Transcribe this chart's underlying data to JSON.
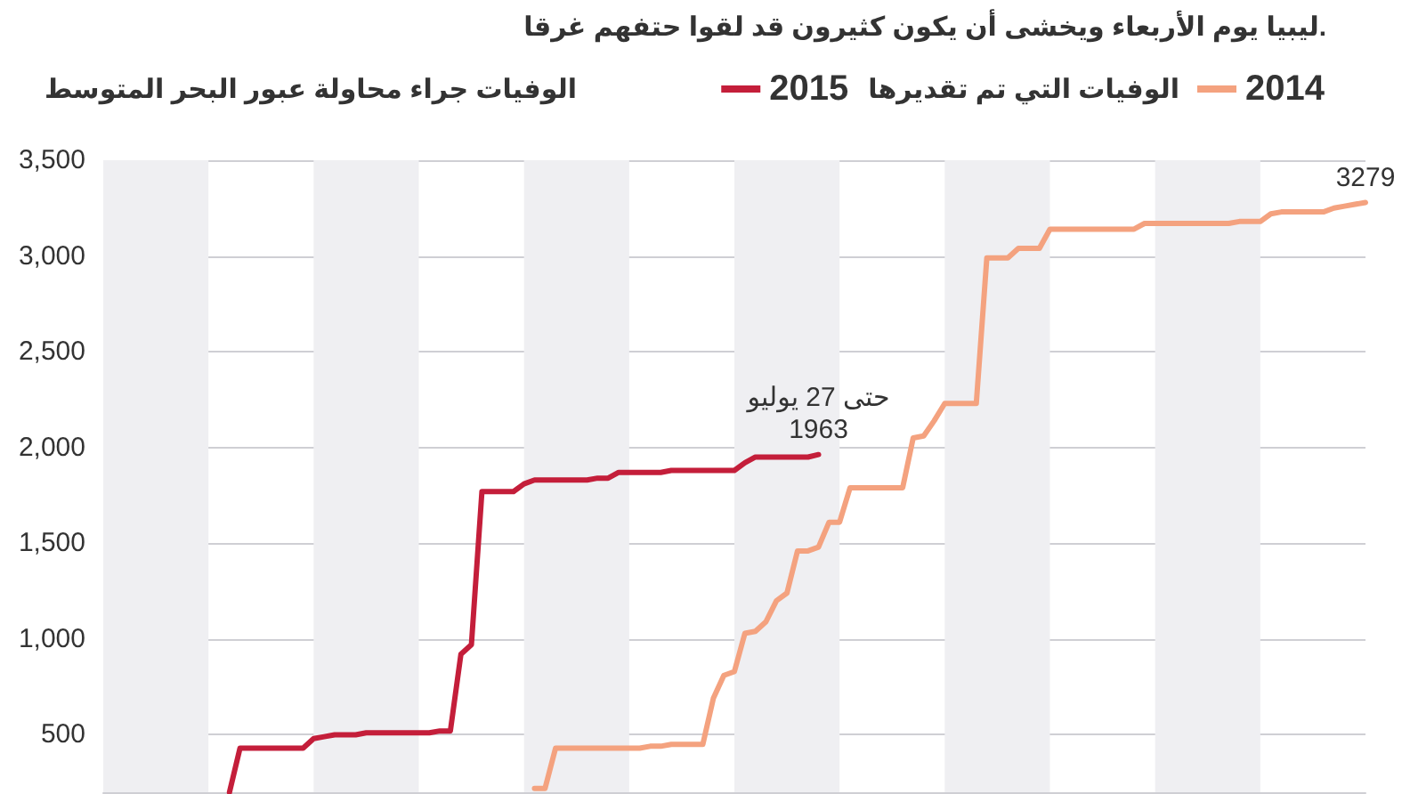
{
  "chart_data": {
    "type": "line",
    "subtitle": "ليبيا يوم الأربعاء ويخشى أن يكون كثيرون قد لقوا حتفهم غرقا.",
    "ylabel": "الوفيات جراء محاولة عبور البحر المتوسط",
    "legend_title": "الوفيات التي تم تقديرها",
    "categories": [
      null,
      null,
      null,
      null,
      null,
      null,
      null,
      null,
      null,
      null,
      null,
      null,
      null,
      null,
      null,
      null,
      null,
      null,
      null,
      null,
      null,
      null,
      null,
      null,
      null,
      null,
      null,
      null,
      null,
      null,
      null,
      null,
      null,
      null,
      null,
      null,
      null,
      null,
      null,
      null,
      null,
      null,
      null,
      null,
      null,
      null,
      null,
      null,
      null,
      null,
      null,
      null,
      null,
      null,
      null,
      null,
      null,
      null,
      null,
      null,
      null,
      null,
      null,
      null,
      null,
      null,
      null,
      null,
      null,
      null,
      null,
      null,
      null,
      null,
      null,
      null,
      null,
      null,
      null,
      null,
      null,
      null,
      null,
      null,
      null,
      null,
      null,
      null,
      null,
      null,
      null,
      null,
      null,
      null,
      null,
      null,
      null,
      null,
      null,
      null,
      null,
      null,
      null,
      null,
      null,
      null,
      null,
      null,
      null,
      null,
      null,
      null,
      null,
      null,
      null,
      null,
      null,
      null,
      null,
      null,
      null
    ],
    "series": [
      {
        "name": "2015",
        "color": "#c41e3a",
        "values": [
          null,
          null,
          null,
          null,
          null,
          null,
          null,
          null,
          null,
          null,
          null,
          null,
          200,
          430,
          430,
          430,
          430,
          430,
          430,
          430,
          480,
          490,
          500,
          500,
          500,
          510,
          510,
          510,
          510,
          510,
          510,
          510,
          520,
          520,
          920,
          970,
          1770,
          1770,
          1770,
          1770,
          1810,
          1830,
          1830,
          1830,
          1830,
          1830,
          1830,
          1840,
          1840,
          1870,
          1870,
          1870,
          1870,
          1870,
          1880,
          1880,
          1880,
          1880,
          1880,
          1880,
          1880,
          1920,
          1950,
          1950,
          1950,
          1950,
          1950,
          1950,
          1963,
          null,
          null,
          null,
          null,
          null,
          null,
          null,
          null,
          null,
          null,
          null,
          null,
          null,
          null,
          null,
          null,
          null,
          null,
          null,
          null,
          null,
          null,
          null,
          null,
          null,
          null,
          null,
          null,
          null,
          null,
          null,
          null,
          null,
          null,
          null,
          null,
          null,
          null,
          null,
          null,
          null,
          null,
          null,
          null,
          null,
          null,
          null,
          null,
          null,
          null,
          null,
          null
        ],
        "value_labels": [
          null,
          null,
          null,
          null,
          null,
          null,
          null,
          null,
          null,
          null,
          null,
          null,
          null,
          null,
          null,
          null,
          null,
          null,
          null,
          null,
          null,
          null,
          null,
          null,
          null,
          null,
          null,
          null,
          null,
          null,
          null,
          null,
          null,
          null,
          null,
          null,
          null,
          null,
          null,
          null,
          null,
          null,
          null,
          null,
          null,
          null,
          null,
          null,
          null,
          null,
          null,
          null,
          null,
          null,
          null,
          null,
          null,
          null,
          null,
          null,
          null,
          null,
          null,
          null,
          null,
          null,
          null,
          null,
          "حتى 27 يوليو\n1963",
          null,
          null,
          null,
          null,
          null,
          null,
          null,
          null,
          null,
          null,
          null,
          null,
          null,
          null,
          null,
          null,
          null,
          null,
          null,
          null,
          null,
          null,
          null,
          null,
          null,
          null,
          null,
          null,
          null,
          null,
          null,
          null,
          null,
          null,
          null,
          null,
          null,
          null,
          null,
          null,
          null,
          null,
          null,
          null,
          null,
          null,
          null,
          null,
          null,
          null,
          null,
          null
        ]
      },
      {
        "name": "2014",
        "color": "#f4a27f",
        "values": [
          null,
          null,
          null,
          null,
          null,
          null,
          null,
          null,
          null,
          null,
          null,
          null,
          null,
          null,
          null,
          null,
          null,
          null,
          null,
          null,
          null,
          null,
          null,
          null,
          null,
          null,
          null,
          null,
          null,
          null,
          null,
          null,
          null,
          null,
          null,
          null,
          null,
          null,
          null,
          null,
          null,
          220,
          220,
          430,
          430,
          430,
          430,
          430,
          430,
          430,
          430,
          430,
          440,
          440,
          450,
          450,
          450,
          450,
          690,
          810,
          830,
          1030,
          1040,
          1090,
          1200,
          1240,
          1460,
          1460,
          1480,
          1610,
          1610,
          1790,
          1790,
          1790,
          1790,
          1790,
          1790,
          2050,
          2060,
          2140,
          2230,
          2230,
          2230,
          2230,
          2990,
          2990,
          2990,
          3040,
          3040,
          3040,
          3140,
          3140,
          3140,
          3140,
          3140,
          3140,
          3140,
          3140,
          3140,
          3170,
          3170,
          3170,
          3170,
          3170,
          3170,
          3170,
          3170,
          3170,
          3180,
          3180,
          3180,
          3220,
          3230,
          3230,
          3230,
          3230,
          3230,
          3250,
          3260,
          3270,
          3279
        ],
        "value_labels": [
          null,
          null,
          null,
          null,
          null,
          null,
          null,
          null,
          null,
          null,
          null,
          null,
          null,
          null,
          null,
          null,
          null,
          null,
          null,
          null,
          null,
          null,
          null,
          null,
          null,
          null,
          null,
          null,
          null,
          null,
          null,
          null,
          null,
          null,
          null,
          null,
          null,
          null,
          null,
          null,
          null,
          null,
          null,
          null,
          null,
          null,
          null,
          null,
          null,
          null,
          null,
          null,
          null,
          null,
          null,
          null,
          null,
          null,
          null,
          null,
          null,
          null,
          null,
          null,
          null,
          null,
          null,
          null,
          null,
          null,
          null,
          null,
          null,
          null,
          null,
          null,
          null,
          null,
          null,
          null,
          null,
          null,
          null,
          null,
          null,
          null,
          null,
          null,
          null,
          null,
          null,
          null,
          null,
          null,
          null,
          null,
          null,
          null,
          null,
          null,
          null,
          null,
          null,
          null,
          null,
          null,
          null,
          null,
          null,
          null,
          null,
          null,
          null,
          null,
          null,
          null,
          null,
          null,
          null,
          null,
          "3279"
        ]
      }
    ],
    "ylim": [
      200,
      3500
    ],
    "yticks": [
      {
        "value": 500,
        "label": "500"
      },
      {
        "value": 1000,
        "label": "1,000"
      },
      {
        "value": 1500,
        "label": "1,500"
      },
      {
        "value": 2000,
        "label": "2,000"
      },
      {
        "value": 2500,
        "label": "2,500"
      },
      {
        "value": 3000,
        "label": "3,000"
      },
      {
        "value": 3500,
        "label": "3,500"
      }
    ],
    "tick_labels": "y",
    "grid": true,
    "legend": "top right",
    "marker": "none",
    "line_style": "solid"
  }
}
